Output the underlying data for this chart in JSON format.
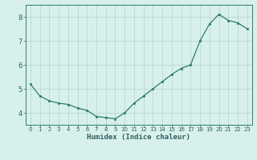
{
  "x": [
    0,
    1,
    2,
    3,
    4,
    5,
    6,
    7,
    8,
    9,
    10,
    11,
    12,
    13,
    14,
    15,
    16,
    17,
    18,
    19,
    20,
    21,
    22,
    23
  ],
  "y": [
    5.2,
    4.7,
    4.5,
    4.4,
    4.35,
    4.2,
    4.1,
    3.85,
    3.8,
    3.75,
    4.0,
    4.4,
    4.7,
    5.0,
    5.3,
    5.6,
    5.85,
    6.0,
    7.0,
    7.7,
    8.1,
    7.85,
    7.75,
    7.5
  ],
  "xlabel": "Humidex (Indice chaleur)",
  "ylim": [
    3.5,
    8.5
  ],
  "xlim": [
    -0.5,
    23.5
  ],
  "yticks": [
    4,
    5,
    6,
    7,
    8
  ],
  "xticks": [
    0,
    1,
    2,
    3,
    4,
    5,
    6,
    7,
    8,
    9,
    10,
    11,
    12,
    13,
    14,
    15,
    16,
    17,
    18,
    19,
    20,
    21,
    22,
    23
  ],
  "line_color": "#2e7d6e",
  "marker_color": "#2e7d6e",
  "bg_color": "#d8f0ec",
  "grid_color": "#b8d8d4",
  "tick_color": "#2e5f5f",
  "label_color": "#2e5f5f",
  "axis_color": "#2e7d6e",
  "xlabel_fontsize": 6.5,
  "ytick_fontsize": 6.0,
  "xtick_fontsize": 5.0
}
